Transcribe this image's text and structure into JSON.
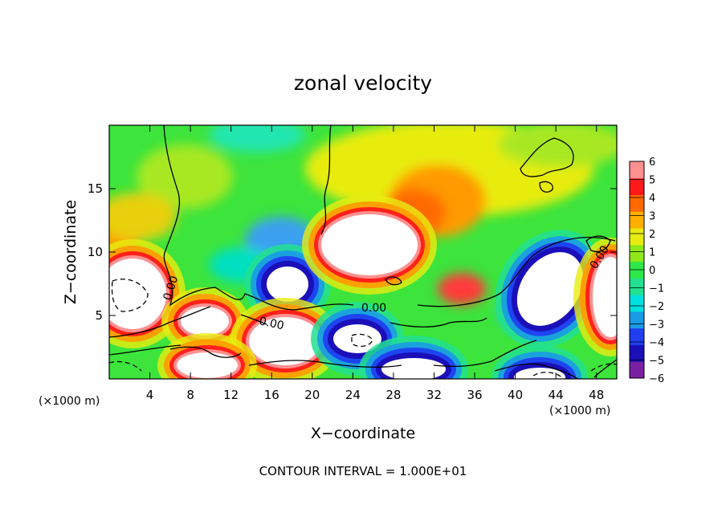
{
  "chart_data": {
    "type": "heatmap",
    "title": "zonal velocity",
    "xlabel": "X−coordinate",
    "ylabel": "Z−coordinate",
    "x_units_label": "(×1000 m)",
    "footer": "CONTOUR INTERVAL = 1.000E+01",
    "x_ticks": [
      "4",
      "8",
      "12",
      "16",
      "20",
      "24",
      "28",
      "32",
      "36",
      "40",
      "44",
      "48"
    ],
    "y_ticks": [
      "5",
      "10",
      "15"
    ],
    "xlim": [
      0,
      50
    ],
    "ylim": [
      0,
      20
    ],
    "colorbar": {
      "labels": [
        "6",
        "5",
        "4",
        "3",
        "2",
        "1",
        "0",
        "−1",
        "−2",
        "−3",
        "−4",
        "−5",
        "−6"
      ],
      "range": [
        -6,
        6
      ],
      "colors": [
        "#7b1fa2",
        "#1a0fb8",
        "#1f3ff0",
        "#1a9be6",
        "#00e0e0",
        "#22e090",
        "#2ee84a",
        "#8ee81a",
        "#e8ec10",
        "#ffb000",
        "#ff6a00",
        "#ff1a1a",
        "#ff9090"
      ]
    },
    "contour_labels": [
      "0.00",
      "0.00",
      "0.00",
      "0.00"
    ],
    "grid": false,
    "legend_position": "right"
  }
}
